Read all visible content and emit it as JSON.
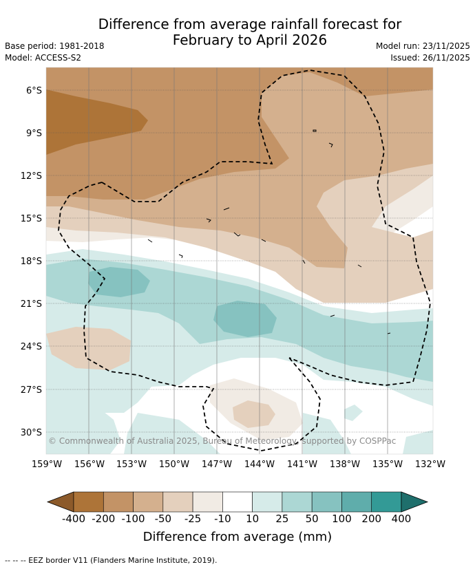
{
  "title_line1": "Difference from average rainfall forecast for",
  "title_line2": "February to April 2026",
  "base_period": "Base period: 1981-2018",
  "model": "Model: ACCESS-S2",
  "model_run": "Model run: 23/11/2025",
  "issued": "Issued: 26/11/2025",
  "copyright": "© Commonwealth of Australia 2025, Bureau of Meteorology, supported by COSPPac",
  "lat_labels": [
    "6°S",
    "9°S",
    "12°S",
    "15°S",
    "18°S",
    "21°S",
    "24°S",
    "27°S",
    "30°S"
  ],
  "lon_labels": [
    "159°W",
    "156°W",
    "153°W",
    "150°W",
    "147°W",
    "144°W",
    "141°W",
    "138°W",
    "135°W",
    "132°W"
  ],
  "colorbar": {
    "title": "Difference from average (mm)",
    "ticks": [
      "-400",
      "-200",
      "-100",
      "-50",
      "-25",
      "-10",
      "10",
      "25",
      "50",
      "100",
      "200",
      "400"
    ],
    "colors": [
      "#8c5a2a",
      "#ad7438",
      "#c39366",
      "#d4b08e",
      "#e4d0bd",
      "#f1ebe4",
      "#ffffff",
      "#d6ebe9",
      "#acd7d4",
      "#86c2c0",
      "#5fadab",
      "#339a96",
      "#1f6f6c"
    ]
  },
  "footer": "--  --  -- EEZ border V11 (Flanders Marine Institute, 2019)."
}
